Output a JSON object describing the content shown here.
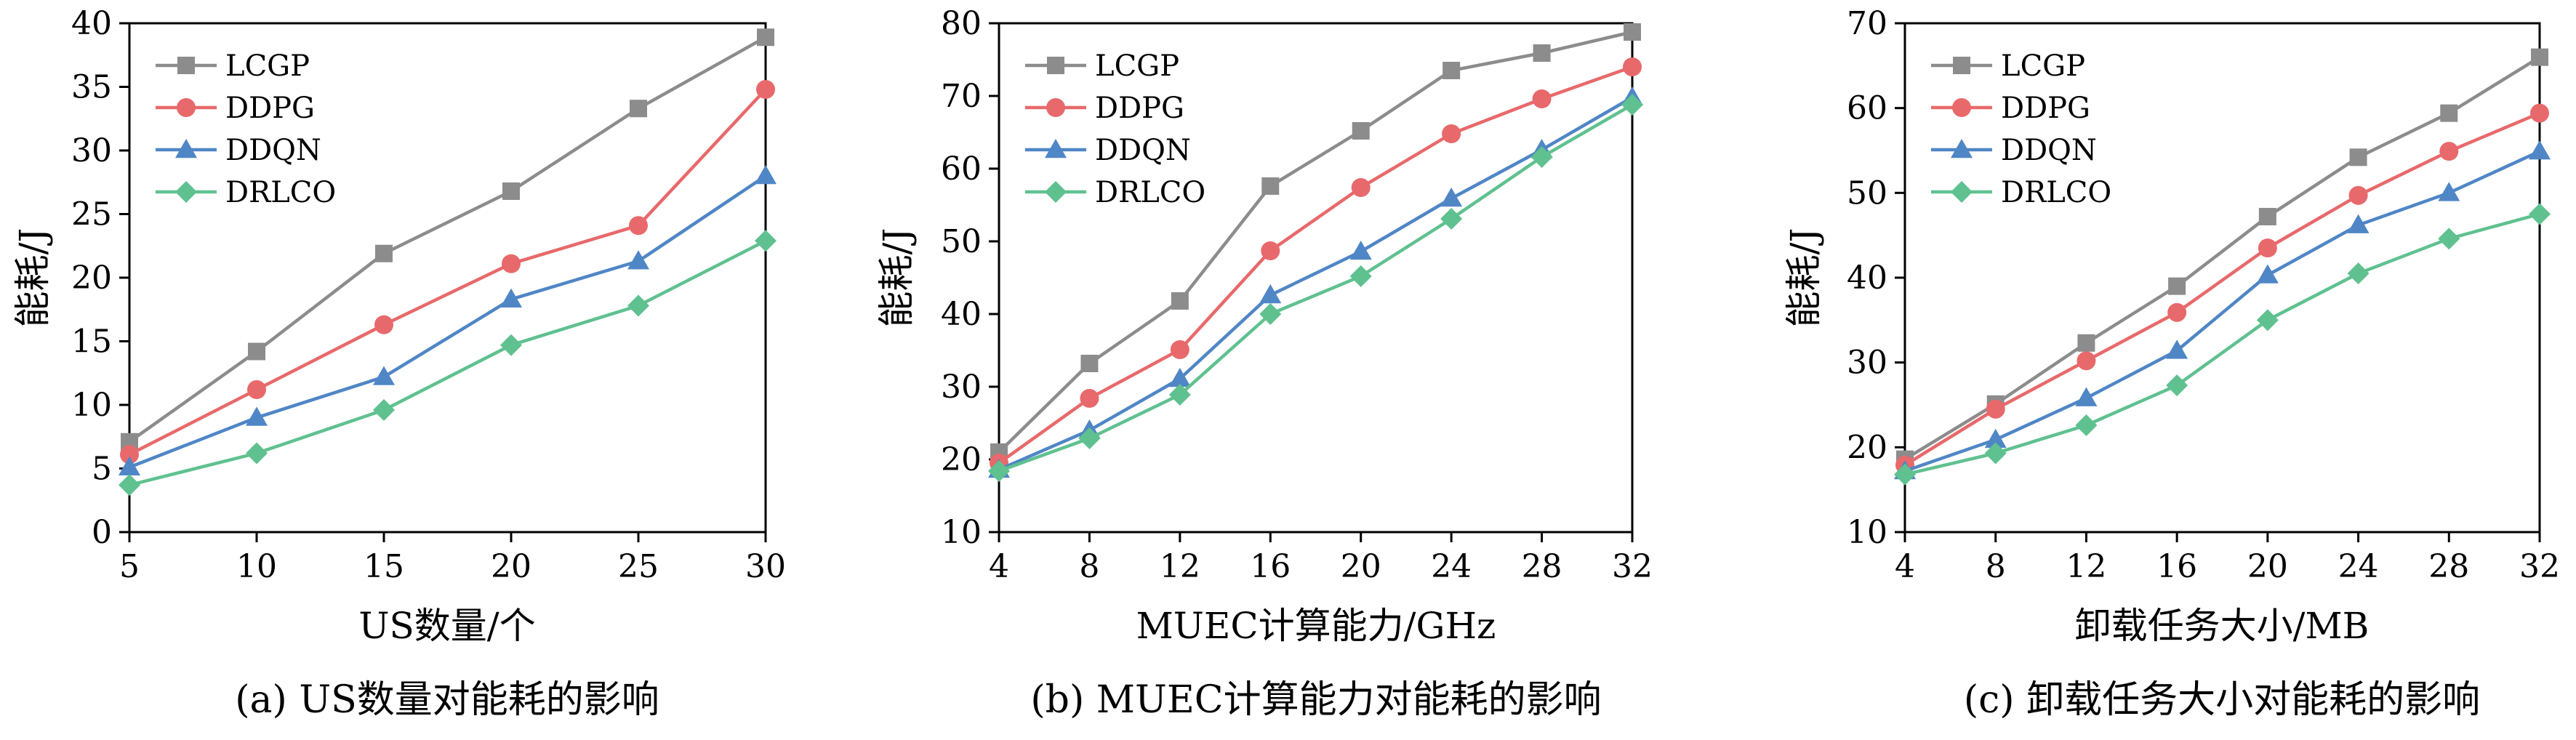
{
  "chart_data": [
    {
      "type": "line",
      "caption": "(a) US数量对能耗的影响",
      "xlabel": "US数量/个",
      "ylabel": "能耗/J",
      "x": [
        5,
        10,
        15,
        20,
        25,
        30
      ],
      "xticks": [
        "5",
        "10",
        "15",
        "20",
        "25",
        "30"
      ],
      "xlim": [
        5,
        30
      ],
      "ylim": [
        0,
        40
      ],
      "yticks": [
        "0",
        "5",
        "10",
        "15",
        "20",
        "25",
        "30",
        "35",
        "40"
      ],
      "legend_position": "top-left",
      "series": [
        {
          "name": "LCGP",
          "values": [
            7.1,
            14.2,
            21.9,
            26.8,
            33.3,
            38.9
          ],
          "color": "#8c8c8c",
          "marker": "square"
        },
        {
          "name": "DDPG",
          "values": [
            6.1,
            11.2,
            16.3,
            21.1,
            24.1,
            34.8
          ],
          "color": "#e8696b",
          "marker": "circle"
        },
        {
          "name": "DDQN",
          "values": [
            5.1,
            9.0,
            12.2,
            18.3,
            21.3,
            28.0
          ],
          "color": "#4f86c6",
          "marker": "triangle"
        },
        {
          "name": "DRLCO",
          "values": [
            3.7,
            6.2,
            9.6,
            14.7,
            17.8,
            22.9
          ],
          "color": "#5fc18f",
          "marker": "diamond"
        }
      ]
    },
    {
      "type": "line",
      "caption": "(b) MUEC计算能力对能耗的影响",
      "xlabel": "MUEC计算能力/GHz",
      "ylabel": "能耗/J",
      "x": [
        4,
        8,
        12,
        16,
        20,
        24,
        28,
        32
      ],
      "xticks": [
        "4",
        "8",
        "12",
        "16",
        "20",
        "24",
        "28",
        "32"
      ],
      "xlim": [
        4,
        32
      ],
      "ylim": [
        10,
        80
      ],
      "yticks": [
        "10",
        "20",
        "30",
        "40",
        "50",
        "60",
        "70",
        "80"
      ],
      "legend_position": "top-left",
      "series": [
        {
          "name": "LCGP",
          "values": [
            21.0,
            33.2,
            41.8,
            57.6,
            65.2,
            73.5,
            75.9,
            78.8
          ],
          "color": "#8c8c8c",
          "marker": "square"
        },
        {
          "name": "DDPG",
          "values": [
            19.5,
            28.4,
            35.1,
            48.7,
            57.4,
            64.8,
            69.6,
            74.0
          ],
          "color": "#e8696b",
          "marker": "circle"
        },
        {
          "name": "DDQN",
          "values": [
            18.6,
            24.0,
            31.1,
            42.6,
            48.6,
            55.9,
            62.6,
            69.8
          ],
          "color": "#4f86c6",
          "marker": "triangle"
        },
        {
          "name": "DRLCO",
          "values": [
            18.4,
            22.9,
            28.9,
            40.0,
            45.2,
            53.1,
            61.6,
            68.8
          ],
          "color": "#5fc18f",
          "marker": "diamond"
        }
      ]
    },
    {
      "type": "line",
      "caption": "(c) 卸载任务大小对能耗的影响",
      "xlabel": "卸载任务大小/MB",
      "ylabel": "能耗/J",
      "x": [
        4,
        8,
        12,
        16,
        20,
        24,
        28,
        32
      ],
      "xticks": [
        "4",
        "8",
        "12",
        "16",
        "20",
        "24",
        "28",
        "32"
      ],
      "xlim": [
        4,
        32
      ],
      "ylim": [
        10,
        70
      ],
      "yticks": [
        "10",
        "20",
        "30",
        "40",
        "50",
        "60",
        "70"
      ],
      "legend_position": "top-left",
      "series": [
        {
          "name": "LCGP",
          "values": [
            18.6,
            25.1,
            32.3,
            39.0,
            47.2,
            54.2,
            59.4,
            66.0
          ],
          "color": "#8c8c8c",
          "marker": "square"
        },
        {
          "name": "DDPG",
          "values": [
            17.9,
            24.5,
            30.2,
            35.9,
            43.5,
            49.7,
            54.9,
            59.4
          ],
          "color": "#e8696b",
          "marker": "circle"
        },
        {
          "name": "DDQN",
          "values": [
            17.2,
            20.9,
            25.8,
            31.4,
            40.3,
            46.2,
            50.0,
            54.9
          ],
          "color": "#4f86c6",
          "marker": "triangle"
        },
        {
          "name": "DRLCO",
          "values": [
            16.8,
            19.3,
            22.6,
            27.3,
            35.0,
            40.5,
            44.6,
            47.5
          ],
          "color": "#5fc18f",
          "marker": "diamond"
        }
      ]
    }
  ]
}
